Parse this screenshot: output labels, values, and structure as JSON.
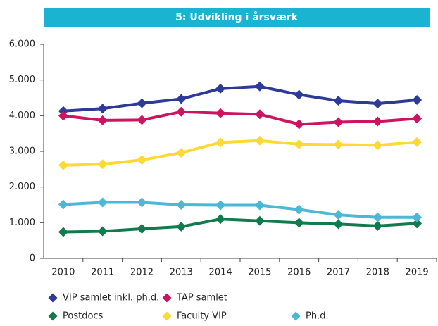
{
  "chart_data": {
    "type": "line",
    "title": "5: Udvikling i årsværk",
    "categories": [
      "2010",
      "2011",
      "2012",
      "2013",
      "2014",
      "2015",
      "2016",
      "2017",
      "2018",
      "2019"
    ],
    "series": [
      {
        "name": "VIP samlet inkl. ph.d.",
        "color": "#2e3a98",
        "values": [
          4130,
          4200,
          4350,
          4470,
          4760,
          4820,
          4590,
          4420,
          4340,
          4440
        ]
      },
      {
        "name": "TAP samlet",
        "color": "#cc1460",
        "values": [
          4000,
          3870,
          3880,
          4110,
          4070,
          4040,
          3760,
          3820,
          3840,
          3920
        ]
      },
      {
        "name": "Postdocs",
        "color": "#127a4f",
        "values": [
          740,
          760,
          830,
          890,
          1100,
          1050,
          1000,
          960,
          910,
          980
        ]
      },
      {
        "name": "Faculty VIP",
        "color": "#fcd935",
        "values": [
          2610,
          2640,
          2760,
          2960,
          3250,
          3300,
          3200,
          3190,
          3170,
          3260
        ]
      },
      {
        "name": "Ph.d.",
        "color": "#4cb8d6",
        "values": [
          1510,
          1570,
          1570,
          1500,
          1490,
          1490,
          1370,
          1220,
          1150,
          1150
        ]
      }
    ],
    "ylim": [
      0,
      6000
    ],
    "yticks": [
      0,
      {
        "value": 1000,
        "label": "1.000"
      },
      {
        "value": 2000,
        "label": "2.000"
      },
      {
        "value": 3000,
        "label": "3.000"
      },
      {
        "value": 4000,
        "label": "4.000"
      },
      {
        "value": 5000,
        "label": "5.000"
      },
      {
        "value": 6000,
        "label": "6.000"
      }
    ],
    "grid": false,
    "legend": "bottom"
  }
}
